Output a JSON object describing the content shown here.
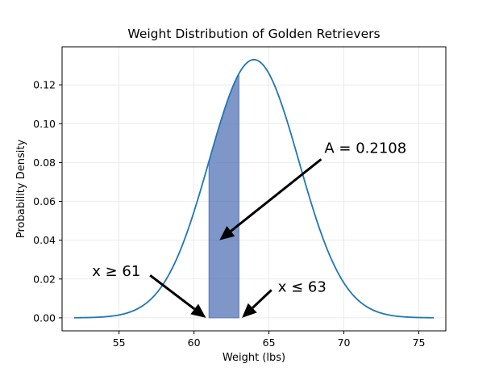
{
  "chart_data": {
    "type": "line",
    "title": "Weight Distribution of Golden Retrievers",
    "xlabel": "Weight (lbs)",
    "ylabel": "Probability Density",
    "xlim": [
      51.2,
      76.8
    ],
    "ylim": [
      -0.0067,
      0.1396
    ],
    "xticks": [
      55,
      60,
      65,
      70,
      75
    ],
    "yticks": [
      0.0,
      0.02,
      0.04,
      0.06,
      0.08,
      0.1,
      0.12
    ],
    "ytick_labels": [
      "0.00",
      "0.02",
      "0.04",
      "0.06",
      "0.08",
      "0.10",
      "0.12"
    ],
    "grid": true,
    "distribution": {
      "mean": 64,
      "std": 3,
      "x_min": 52,
      "x_max": 76
    },
    "shaded_region": {
      "x_start": 61,
      "x_end": 63,
      "area_label": "A = 0.2108"
    },
    "annotations": [
      {
        "id": "area",
        "text": "A = 0.2108",
        "text_at": [
          68.7,
          0.085
        ],
        "arrow_to": [
          61.7,
          0.04
        ]
      },
      {
        "id": "lower-bound",
        "text": "x  ≥ 61",
        "text_at": [
          53.2,
          0.0215
        ],
        "arrow_to": [
          60.8,
          0.0
        ]
      },
      {
        "id": "upper-bound",
        "text": "x ≤ 63",
        "text_at": [
          65.6,
          0.0135
        ],
        "arrow_to": [
          63.2,
          0.0
        ]
      }
    ],
    "colors": {
      "line": "#1f77b4",
      "fill": "#4c6fb3",
      "fill_edge": "#5b77b7",
      "grid": "#e6e6e6",
      "arrow": "#000000"
    }
  }
}
